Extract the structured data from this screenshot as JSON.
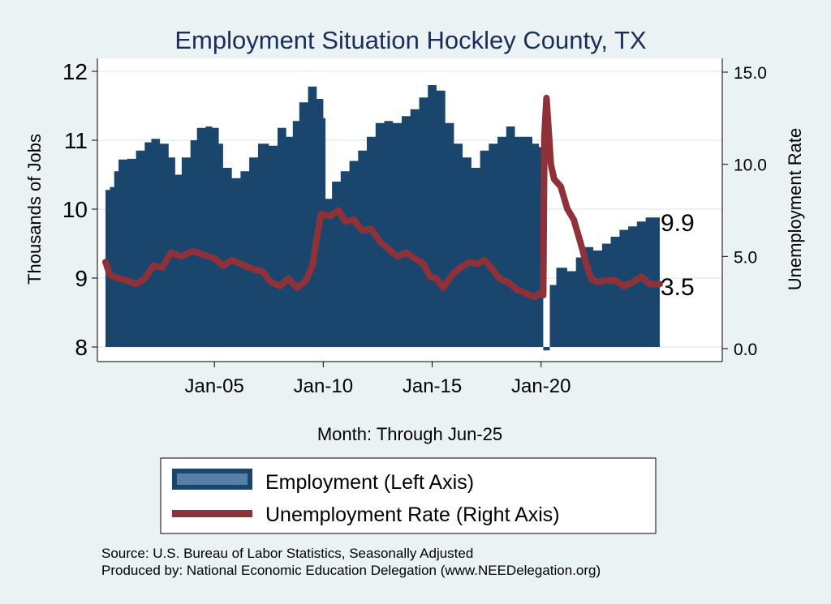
{
  "chart_data": {
    "type": "area",
    "title": "Employment Situation Hockley  County, TX",
    "xlabel": "Month: Through Jun-25",
    "ylabel_left": "Thousands of Jobs",
    "ylabel_right": "Unemployment Rate",
    "x_ticks": [
      "Jan-05",
      "Jan-10",
      "Jan-15",
      "Jan-20"
    ],
    "y_left": {
      "min": 8,
      "max": 12,
      "ticks": [
        "8",
        "9",
        "10",
        "11",
        "12"
      ]
    },
    "y_right": {
      "min": 0,
      "max": 15,
      "ticks": [
        "0.0",
        "5.0",
        "10.0",
        "15.0"
      ]
    },
    "x_range": [
      "Jan-00",
      "Jun-25"
    ],
    "end_labels": {
      "employment": "9.9",
      "unemployment": "3.5"
    },
    "legend": [
      "Employment (Left Axis)",
      "Unemployment Rate (Right Axis)"
    ],
    "colors": {
      "employment": "#1a466e",
      "employment_legend_inner": "#5a7fa6",
      "unemployment": "#8f3138",
      "axis_bg": "#ffffff",
      "page_bg": "#eaf2f3",
      "title": "#1a2e5a"
    },
    "series": [
      {
        "name": "Employment (Left Axis)",
        "axis": "left",
        "points": [
          [
            2000.0,
            10.28
          ],
          [
            2000.2,
            10.32
          ],
          [
            2000.4,
            10.55
          ],
          [
            2000.6,
            10.72
          ],
          [
            2001.0,
            10.73
          ],
          [
            2001.4,
            10.85
          ],
          [
            2001.8,
            10.97
          ],
          [
            2002.1,
            11.02
          ],
          [
            2002.5,
            10.95
          ],
          [
            2002.9,
            10.75
          ],
          [
            2003.2,
            10.5
          ],
          [
            2003.5,
            10.75
          ],
          [
            2003.9,
            11.0
          ],
          [
            2004.2,
            11.18
          ],
          [
            2004.6,
            11.2
          ],
          [
            2004.9,
            11.18
          ],
          [
            2005.2,
            10.95
          ],
          [
            2005.4,
            10.6
          ],
          [
            2005.8,
            10.45
          ],
          [
            2006.2,
            10.55
          ],
          [
            2006.6,
            10.75
          ],
          [
            2007.0,
            10.95
          ],
          [
            2007.5,
            10.92
          ],
          [
            2007.9,
            11.18
          ],
          [
            2008.3,
            11.05
          ],
          [
            2008.6,
            11.28
          ],
          [
            2008.9,
            11.55
          ],
          [
            2009.3,
            11.78
          ],
          [
            2009.7,
            11.6
          ],
          [
            2010.0,
            11.32
          ],
          [
            2010.1,
            10.15
          ],
          [
            2010.4,
            10.4
          ],
          [
            2010.8,
            10.55
          ],
          [
            2011.2,
            10.7
          ],
          [
            2011.6,
            10.85
          ],
          [
            2012.0,
            11.05
          ],
          [
            2012.4,
            11.25
          ],
          [
            2012.8,
            11.28
          ],
          [
            2013.2,
            11.25
          ],
          [
            2013.6,
            11.35
          ],
          [
            2014.0,
            11.45
          ],
          [
            2014.4,
            11.62
          ],
          [
            2014.8,
            11.8
          ],
          [
            2015.2,
            11.72
          ],
          [
            2015.6,
            11.25
          ],
          [
            2016.0,
            10.95
          ],
          [
            2016.4,
            10.75
          ],
          [
            2016.8,
            10.6
          ],
          [
            2017.2,
            10.85
          ],
          [
            2017.6,
            10.95
          ],
          [
            2018.0,
            11.05
          ],
          [
            2018.4,
            11.2
          ],
          [
            2018.8,
            11.05
          ],
          [
            2019.2,
            11.05
          ],
          [
            2019.6,
            10.95
          ],
          [
            2019.9,
            10.9
          ],
          [
            2020.1,
            7.95
          ],
          [
            2020.4,
            8.9
          ],
          [
            2020.7,
            9.15
          ],
          [
            2021.2,
            9.1
          ],
          [
            2021.6,
            9.3
          ],
          [
            2022.0,
            9.45
          ],
          [
            2022.4,
            9.4
          ],
          [
            2022.8,
            9.5
          ],
          [
            2023.2,
            9.6
          ],
          [
            2023.6,
            9.7
          ],
          [
            2024.0,
            9.75
          ],
          [
            2024.4,
            9.82
          ],
          [
            2024.8,
            9.88
          ],
          [
            2025.0,
            9.88
          ],
          [
            2025.45,
            9.85
          ]
        ]
      },
      {
        "name": "Unemployment Rate (Right Axis)",
        "axis": "right",
        "points": [
          [
            2000.0,
            4.7
          ],
          [
            2000.2,
            4.0
          ],
          [
            2000.6,
            3.8
          ],
          [
            2001.0,
            3.7
          ],
          [
            2001.4,
            3.5
          ],
          [
            2001.8,
            3.8
          ],
          [
            2002.2,
            4.5
          ],
          [
            2002.6,
            4.4
          ],
          [
            2003.0,
            5.2
          ],
          [
            2003.5,
            5.0
          ],
          [
            2004.0,
            5.3
          ],
          [
            2004.5,
            5.1
          ],
          [
            2005.0,
            4.9
          ],
          [
            2005.4,
            4.5
          ],
          [
            2005.8,
            4.8
          ],
          [
            2006.2,
            4.6
          ],
          [
            2006.8,
            4.3
          ],
          [
            2007.2,
            4.2
          ],
          [
            2007.6,
            3.6
          ],
          [
            2008.0,
            3.4
          ],
          [
            2008.4,
            3.8
          ],
          [
            2008.8,
            3.3
          ],
          [
            2009.2,
            3.7
          ],
          [
            2009.5,
            4.5
          ],
          [
            2009.7,
            6.0
          ],
          [
            2009.9,
            7.3
          ],
          [
            2010.3,
            7.2
          ],
          [
            2010.7,
            7.5
          ],
          [
            2011.0,
            6.9
          ],
          [
            2011.4,
            7.0
          ],
          [
            2011.8,
            6.4
          ],
          [
            2012.2,
            6.5
          ],
          [
            2012.6,
            5.8
          ],
          [
            2013.0,
            5.4
          ],
          [
            2013.4,
            5.0
          ],
          [
            2013.8,
            5.2
          ],
          [
            2014.2,
            4.9
          ],
          [
            2014.6,
            4.6
          ],
          [
            2014.9,
            3.9
          ],
          [
            2015.2,
            3.8
          ],
          [
            2015.5,
            3.3
          ],
          [
            2015.9,
            4.0
          ],
          [
            2016.3,
            4.4
          ],
          [
            2016.7,
            4.7
          ],
          [
            2017.1,
            4.6
          ],
          [
            2017.4,
            4.8
          ],
          [
            2017.7,
            4.4
          ],
          [
            2018.1,
            3.8
          ],
          [
            2018.5,
            3.6
          ],
          [
            2018.9,
            3.2
          ],
          [
            2019.3,
            3.0
          ],
          [
            2019.7,
            2.8
          ],
          [
            2019.95,
            3.0
          ],
          [
            2020.1,
            2.9
          ],
          [
            2020.15,
            11.5
          ],
          [
            2020.25,
            13.6
          ],
          [
            2020.45,
            10.0
          ],
          [
            2020.6,
            9.2
          ],
          [
            2020.9,
            8.8
          ],
          [
            2021.2,
            7.6
          ],
          [
            2021.5,
            7.0
          ],
          [
            2021.8,
            5.8
          ],
          [
            2022.1,
            4.5
          ],
          [
            2022.3,
            3.8
          ],
          [
            2022.6,
            3.6
          ],
          [
            2023.0,
            3.7
          ],
          [
            2023.4,
            3.7
          ],
          [
            2023.8,
            3.4
          ],
          [
            2024.2,
            3.6
          ],
          [
            2024.6,
            3.9
          ],
          [
            2025.0,
            3.5
          ],
          [
            2025.45,
            3.5
          ]
        ]
      }
    ],
    "annotations": [
      "Source: U.S. Bureau of Labor Statistics, Seasonally Adjusted",
      "Produced by: National Economic Education Delegation (www.NEEDelegation.org)"
    ]
  }
}
